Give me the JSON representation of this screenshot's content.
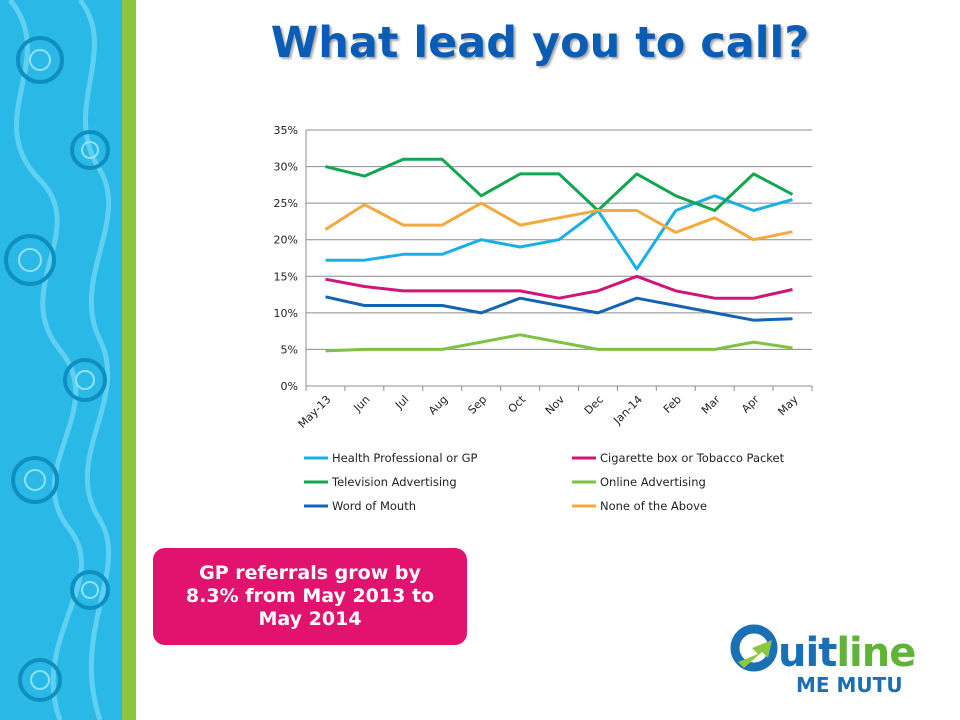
{
  "title": "What lead you to call?",
  "callout": {
    "text": "GP referrals grow by 8.3% from May 2013 to May 2014"
  },
  "logo": {
    "word": "Quitline",
    "subtitle": "ME MUTU"
  },
  "colors": {
    "title": "#0a5db5",
    "callout_bg": "#e2126f",
    "side_pattern": "#2ab8e6",
    "side_stripe": "#8dc63f"
  },
  "chart_data": {
    "type": "line",
    "title": "",
    "xlabel": "",
    "ylabel": "",
    "ylim": [
      0,
      35
    ],
    "yticks": [
      "0%",
      "5%",
      "10%",
      "15%",
      "20%",
      "25%",
      "30%",
      "35%"
    ],
    "grid": true,
    "legend_position": "bottom",
    "categories": [
      "May-13",
      "Jun",
      "Jul",
      "Aug",
      "Sep",
      "Oct",
      "Nov",
      "Dec",
      "Jan-14",
      "Feb",
      "Mar",
      "Apr",
      "May"
    ],
    "series": [
      {
        "name": "Health Professional or GP",
        "color": "#1ab0e3",
        "values": [
          17.2,
          17.2,
          18,
          18,
          20,
          19,
          20,
          24,
          16,
          24,
          26,
          24,
          25.5
        ]
      },
      {
        "name": "Cigarette box or Tobacco Packet",
        "color": "#d0157a",
        "values": [
          14.6,
          13.6,
          13,
          13,
          13,
          13,
          12,
          13,
          15,
          13,
          12,
          12,
          13.2
        ]
      },
      {
        "name": "Television Advertising",
        "color": "#13a651",
        "values": [
          30,
          28.7,
          31,
          31,
          26,
          29,
          29,
          24,
          29,
          26,
          24,
          29,
          26.2
        ]
      },
      {
        "name": "Online Advertising",
        "color": "#7dc242",
        "values": [
          4.8,
          5,
          5,
          5,
          6,
          7,
          6,
          5,
          5,
          5,
          5,
          6,
          5.2
        ]
      },
      {
        "name": "Word of Mouth",
        "color": "#1464b4",
        "values": [
          12.2,
          11,
          11,
          11,
          10,
          12,
          11,
          10,
          12,
          11,
          10,
          9,
          9.2
        ]
      },
      {
        "name": "None of the Above",
        "color": "#f4a93e",
        "values": [
          21.4,
          24.8,
          22,
          22,
          25,
          22,
          23,
          24,
          24,
          21,
          23,
          20,
          21.1
        ]
      }
    ]
  }
}
